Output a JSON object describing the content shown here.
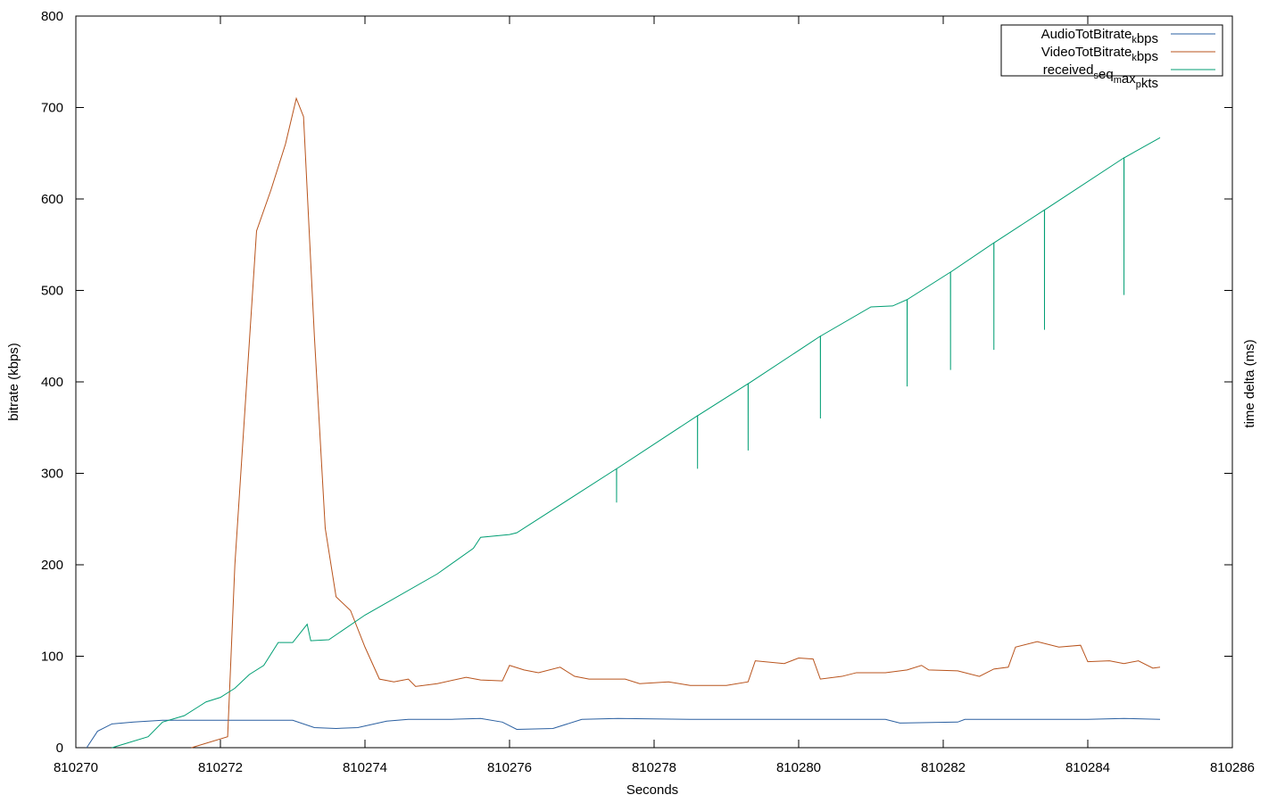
{
  "chart_data": {
    "type": "line",
    "x_label": "Seconds",
    "y_label": "bitrate (kbps)",
    "y2_label": "time delta (ms)",
    "xlim": [
      810270,
      810286
    ],
    "xticks": [
      810270,
      810272,
      810274,
      810276,
      810278,
      810280,
      810282,
      810284,
      810286
    ],
    "ylim": [
      0,
      800
    ],
    "yticks": [
      0,
      100,
      200,
      300,
      400,
      500,
      600,
      700,
      800
    ],
    "legend": "top-right",
    "series": [
      {
        "name": "AudioTotBitrate_kbps",
        "color": "#2a5fa0",
        "x": [
          810270.15,
          810270.3,
          810270.5,
          810270.8,
          810271.2,
          810271.8,
          810272.4,
          810273.0,
          810273.3,
          810273.6,
          810273.9,
          810274.3,
          810274.6,
          810275.2,
          810275.6,
          810275.9,
          810276.1,
          810276.6,
          810277.0,
          810277.5,
          810278.5,
          810279.5,
          810280.5,
          810281.2,
          810281.4,
          810282.2,
          810282.3,
          810283.0,
          810284.0,
          810284.5,
          810285.0
        ],
        "values": [
          0,
          18,
          26,
          28,
          30,
          30,
          30,
          30,
          22,
          21,
          22,
          29,
          31,
          31,
          32,
          28,
          20,
          21,
          31,
          32,
          31,
          31,
          31,
          31,
          27,
          28,
          31,
          31,
          31,
          32,
          31
        ]
      },
      {
        "name": "VideoTotBitrate_kbps",
        "color": "#b8531c",
        "x": [
          810271.6,
          810272.1,
          810272.2,
          810272.5,
          810272.7,
          810272.9,
          810273.05,
          810273.15,
          810273.3,
          810273.45,
          810273.6,
          810273.8,
          810274.0,
          810274.2,
          810274.4,
          810274.6,
          810274.7,
          810275.0,
          810275.4,
          810275.6,
          810275.9,
          810276.0,
          810276.2,
          810276.4,
          810276.7,
          810276.9,
          810277.1,
          810277.6,
          810277.8,
          810278.2,
          810278.5,
          810279.0,
          810279.3,
          810279.4,
          810279.8,
          810280.0,
          810280.2,
          810280.3,
          810280.6,
          810280.8,
          810281.2,
          810281.5,
          810281.7,
          810281.8,
          810282.2,
          810282.5,
          810282.7,
          810282.9,
          810283.0,
          810283.3,
          810283.6,
          810283.9,
          810284.0,
          810284.3,
          810284.5,
          810284.7,
          810284.9,
          810285.0
        ],
        "values": [
          0,
          12,
          200,
          565,
          610,
          660,
          710,
          690,
          450,
          240,
          165,
          150,
          110,
          75,
          72,
          75,
          67,
          70,
          77,
          74,
          73,
          90,
          85,
          82,
          88,
          78,
          75,
          75,
          70,
          72,
          68,
          68,
          72,
          95,
          92,
          98,
          97,
          75,
          78,
          82,
          82,
          85,
          90,
          85,
          84,
          78,
          86,
          88,
          110,
          116,
          110,
          112,
          94,
          95,
          92,
          95,
          87,
          88
        ]
      },
      {
        "name": "received_seq_max_pkts",
        "color": "#009e73",
        "x": [
          810270.5,
          810271.0,
          810271.2,
          810271.5,
          810271.7,
          810271.8,
          810272.0,
          810272.2,
          810272.4,
          810272.6,
          810272.8,
          810273.0,
          810273.2,
          810273.25,
          810273.5,
          810274.0,
          810275.0,
          810275.5,
          810275.6,
          810276.0,
          810276.1,
          810277.48,
          810277.481,
          810277.482,
          810278.6,
          810278.601,
          810278.602,
          810279.3,
          810279.301,
          810279.302,
          810280.3,
          810280.301,
          810280.302,
          810281.0,
          810281.3,
          810281.5,
          810281.501,
          810281.502,
          810282.1,
          810282.101,
          810282.102,
          810282.7,
          810282.701,
          810282.702,
          810283.4,
          810283.401,
          810283.402,
          810284.5,
          810284.501,
          810284.502,
          810285.0
        ],
        "values": [
          0,
          12,
          28,
          35,
          45,
          50,
          55,
          65,
          80,
          90,
          115,
          115,
          135,
          117,
          118,
          145,
          190,
          218,
          230,
          233,
          235,
          305,
          268,
          305,
          363,
          305,
          363,
          398,
          325,
          398,
          450,
          360,
          450,
          482,
          483,
          490,
          395,
          490,
          520,
          413,
          520,
          552,
          435,
          552,
          588,
          457,
          588,
          645,
          495,
          645,
          667
        ]
      }
    ]
  }
}
